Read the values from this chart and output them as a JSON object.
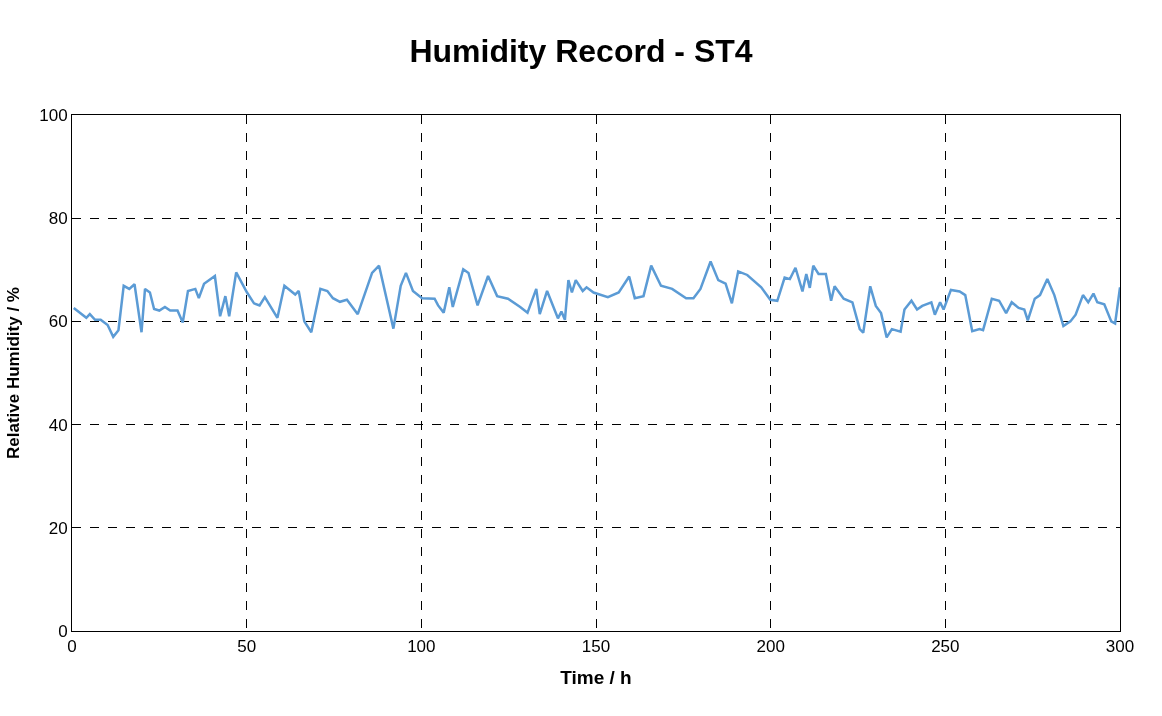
{
  "chart_data": {
    "type": "line",
    "title": "Humidity Record - ST4",
    "xlabel": "Time / h",
    "ylabel": "Relative Humidity / %",
    "xlim": [
      0,
      300
    ],
    "xticks": [
      0,
      50,
      100,
      150,
      200,
      250,
      300
    ],
    "ylim": [
      0,
      100
    ],
    "yticks": [
      0,
      20,
      40,
      60,
      80,
      100
    ],
    "grid": true,
    "line_style": "solid",
    "marker": "none",
    "series": [
      {
        "color": "#5b9bd5",
        "x": [
          0.5,
          4.1,
          5.1,
          6.6,
          8.2,
          10.2,
          11.8,
          13.3,
          14.8,
          16.4,
          17.9,
          19.9,
          20.9,
          22.3,
          23.5,
          25.0,
          26.6,
          28.1,
          30.2,
          31.7,
          33.2,
          35.3,
          36.3,
          37.8,
          40.9,
          42.4,
          43.9,
          45.0,
          47.0,
          50.1,
          52.1,
          53.7,
          55.2,
          58.8,
          60.8,
          63.9,
          64.9,
          66.5,
          68.5,
          71.1,
          73.1,
          74.7,
          76.7,
          78.7,
          81.8,
          85.9,
          87.9,
          92.0,
          94.1,
          95.6,
          97.6,
          100.2,
          103.8,
          104.8,
          106.4,
          108.0,
          109.0,
          112.0,
          113.5,
          116.1,
          119.1,
          121.7,
          124.8,
          128.3,
          130.4,
          132.9,
          133.9,
          136.0,
          139.1,
          140.1,
          141.1,
          142.1,
          143.1,
          144.2,
          146.2,
          147.3,
          149.3,
          153.4,
          156.5,
          159.5,
          161.1,
          163.6,
          165.8,
          168.6,
          171.8,
          175.8,
          177.9,
          179.9,
          182.8,
          185.0,
          187.1,
          188.9,
          190.7,
          193.3,
          197.3,
          199.9,
          201.9,
          204.0,
          205.5,
          207.1,
          209.1,
          210.2,
          211.2,
          212.2,
          213.7,
          215.8,
          217.3,
          218.3,
          220.9,
          223.4,
          225.5,
          226.5,
          228.5,
          230.1,
          231.6,
          233.2,
          234.7,
          237.2,
          238.3,
          240.3,
          241.9,
          243.4,
          246.0,
          247.0,
          248.5,
          249.5,
          251.6,
          254.1,
          255.7,
          257.7,
          259.8,
          260.8,
          263.3,
          265.4,
          267.4,
          269.0,
          271.0,
          272.6,
          273.6,
          275.6,
          277.1,
          279.2,
          281.2,
          283.8,
          285.8,
          287.3,
          289.4,
          290.9,
          292.4,
          293.5,
          295.5,
          297.5,
          298.6,
          300.0
        ],
        "values": [
          62.6,
          60.7,
          61.4,
          60.3,
          60.3,
          59.3,
          57.0,
          58.3,
          66.9,
          66.3,
          67.2,
          57.9,
          66.3,
          65.6,
          62.4,
          62.1,
          62.8,
          62.1,
          62.1,
          59.8,
          65.9,
          66.3,
          64.5,
          67.3,
          68.8,
          61.0,
          64.9,
          61.0,
          69.5,
          65.6,
          63.5,
          63.1,
          64.7,
          60.7,
          66.9,
          65.2,
          65.9,
          60.0,
          57.9,
          66.3,
          65.9,
          64.5,
          63.8,
          64.2,
          61.4,
          69.4,
          70.8,
          58.6,
          66.9,
          69.4,
          65.9,
          64.5,
          64.4,
          63.1,
          61.7,
          66.6,
          62.8,
          70.1,
          69.4,
          63.1,
          68.8,
          64.9,
          64.4,
          62.8,
          61.7,
          66.3,
          61.4,
          65.9,
          60.6,
          61.9,
          60.3,
          68.0,
          65.6,
          68.0,
          65.9,
          66.6,
          65.6,
          64.7,
          65.6,
          68.7,
          64.5,
          64.9,
          70.8,
          66.9,
          66.3,
          64.5,
          64.5,
          66.3,
          71.6,
          68.0,
          67.3,
          63.5,
          69.7,
          69.0,
          66.6,
          64.2,
          64.0,
          68.5,
          68.2,
          70.4,
          65.8,
          69.2,
          66.5,
          70.8,
          69.2,
          69.2,
          64.0,
          66.8,
          64.4,
          63.7,
          58.5,
          57.8,
          66.8,
          63.0,
          61.6,
          56.9,
          58.5,
          58.0,
          62.3,
          64.0,
          62.3,
          63.0,
          63.7,
          61.3,
          63.7,
          62.3,
          66.1,
          65.8,
          65.1,
          58.1,
          58.5,
          58.3,
          64.4,
          64.0,
          61.6,
          63.7,
          62.6,
          62.3,
          60.2,
          64.4,
          65.1,
          68.2,
          65.1,
          59.1,
          60.0,
          61.3,
          65.1,
          63.7,
          65.4,
          63.7,
          63.3,
          60.0,
          59.6,
          66.6
        ]
      }
    ]
  }
}
